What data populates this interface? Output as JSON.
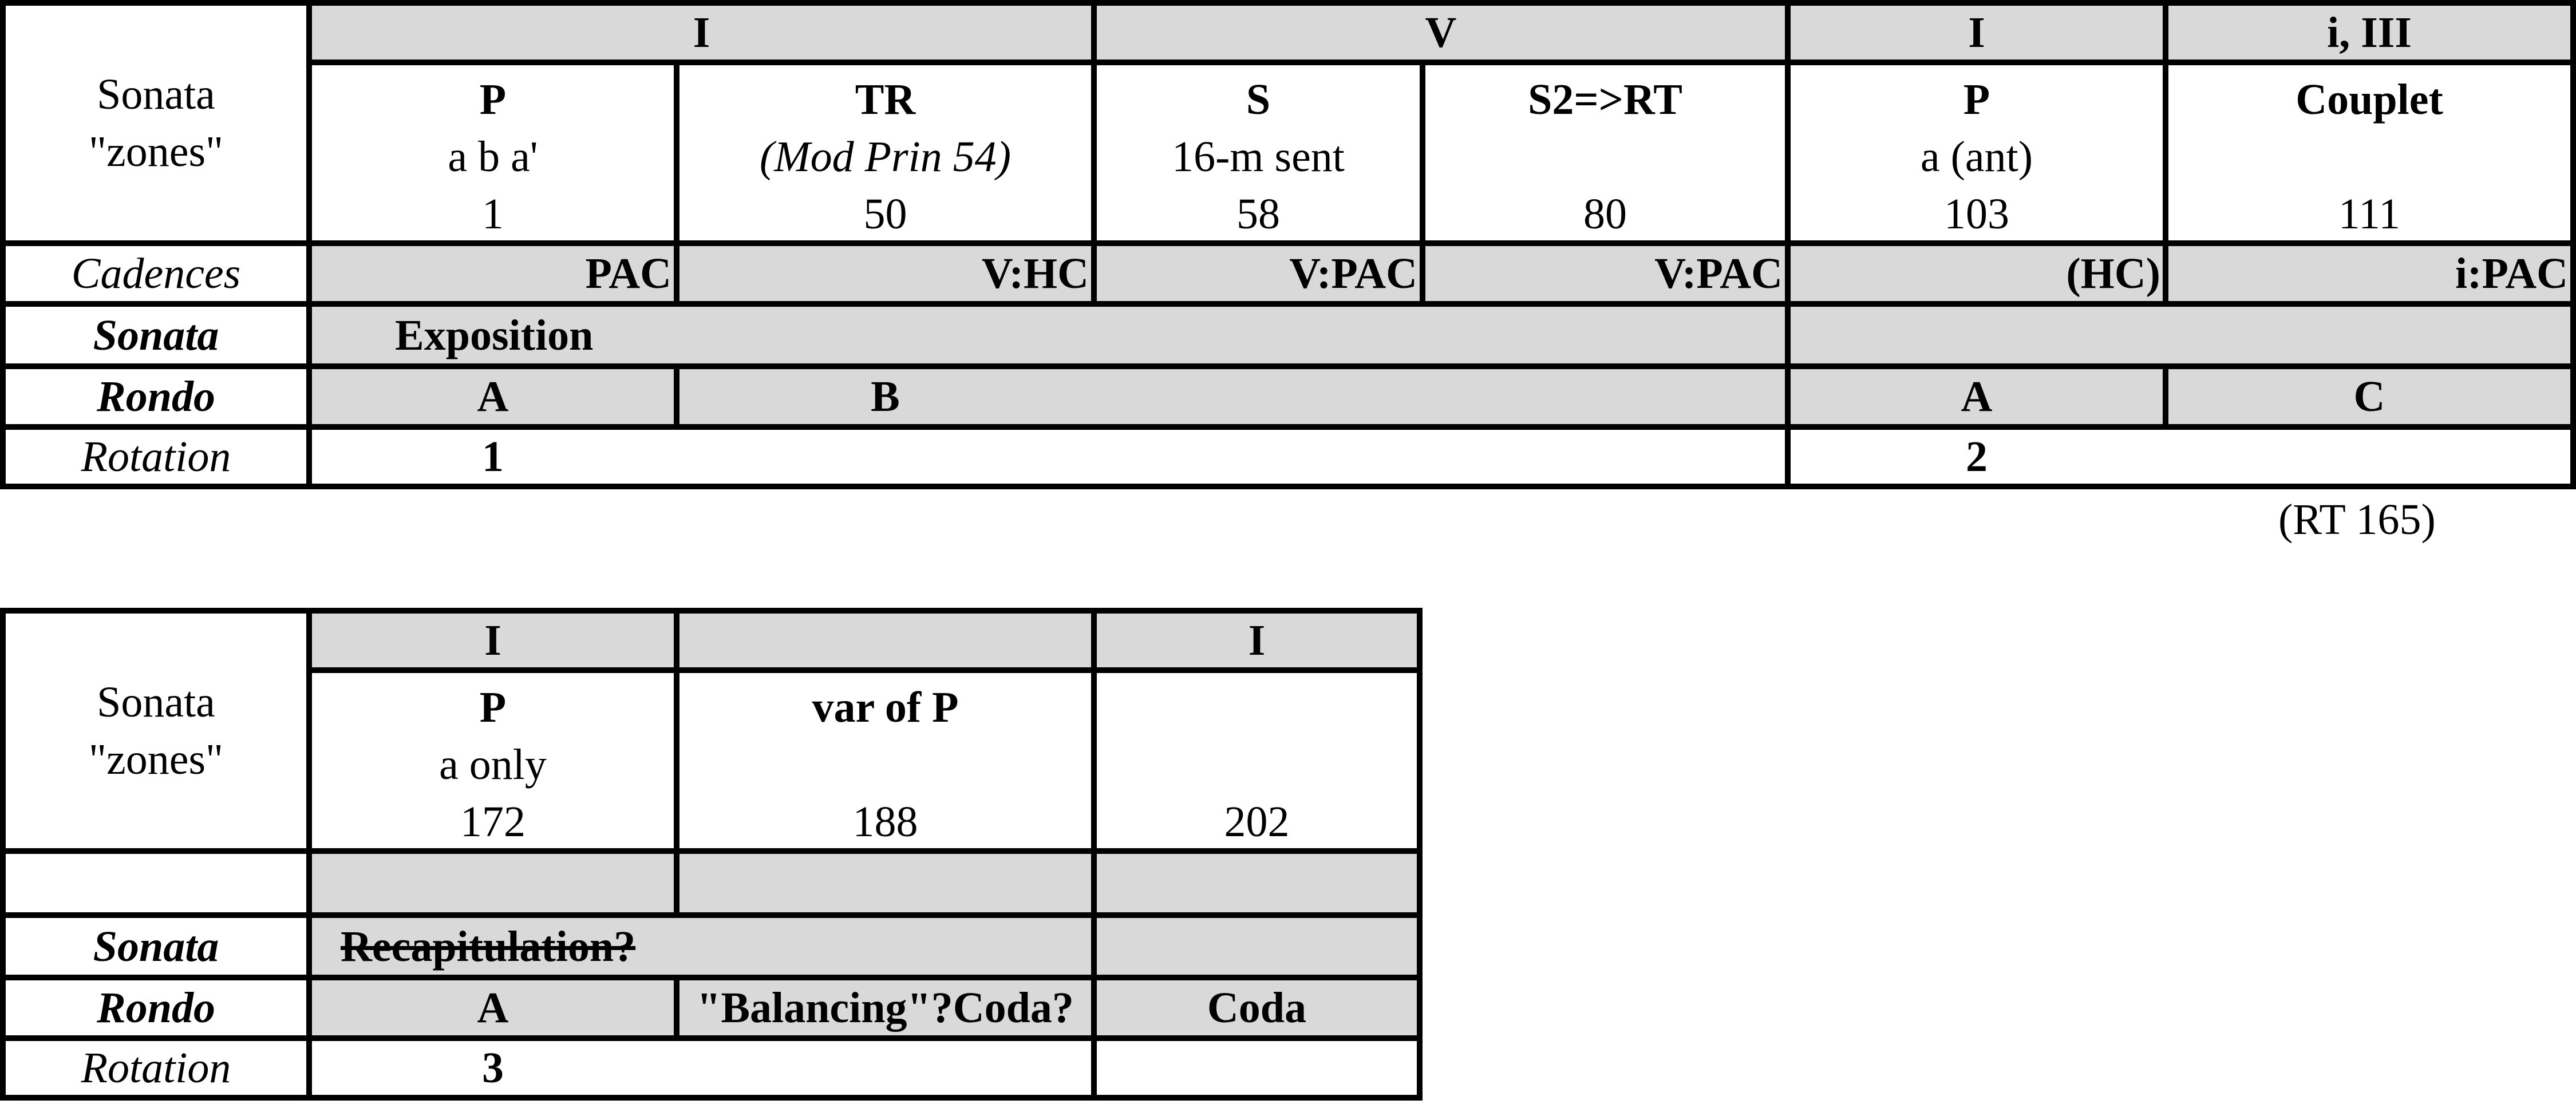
{
  "table1": {
    "row_label_zones": [
      "Sonata",
      "\"zones\""
    ],
    "row_labels": {
      "cadences": "Cadences",
      "sonata": "Sonata",
      "rondo": "Rondo",
      "rotation": "Rotation"
    },
    "keys": [
      "I",
      "V",
      "I",
      "i, III"
    ],
    "zones": [
      {
        "name": "P",
        "desc": "a b a'",
        "measure": "1"
      },
      {
        "name": "TR",
        "desc": "(Mod Prin 54)",
        "measure": "50"
      },
      {
        "name": "S",
        "desc": "16-m sent",
        "measure": "58"
      },
      {
        "name": "S2=>RT",
        "desc": "",
        "measure": "80"
      },
      {
        "name": "P",
        "desc": "a (ant)",
        "measure": "103"
      },
      {
        "name": "Couplet",
        "desc": "",
        "measure": "111"
      }
    ],
    "cadences": [
      "PAC",
      "V:HC",
      "V:PAC",
      "V:PAC",
      "(HC)",
      "i:PAC"
    ],
    "sonata": [
      "Exposition",
      ""
    ],
    "rondo": [
      "A",
      "B",
      "A",
      "C"
    ],
    "rotation": [
      "1",
      "2"
    ]
  },
  "note": "(RT 165)",
  "table2": {
    "row_label_zones": [
      "Sonata",
      "\"zones\""
    ],
    "row_labels": {
      "cadences": "",
      "sonata": "Sonata",
      "rondo": "Rondo",
      "rotation": "Rotation"
    },
    "keys": [
      "I",
      "",
      "I"
    ],
    "zones": [
      {
        "name": "P",
        "desc": "a only",
        "measure": "172"
      },
      {
        "name": "var of P",
        "desc": "",
        "measure": "188"
      },
      {
        "name": "",
        "desc": "",
        "measure": "202"
      }
    ],
    "cadences": [
      "",
      "",
      ""
    ],
    "sonata": [
      "Recapitulation?",
      ""
    ],
    "rondo": [
      "A",
      "\"Balancing\"?Coda?",
      "Coda"
    ],
    "rotation": [
      "3",
      ""
    ]
  },
  "colors": {
    "shaded": "#d9d9d9",
    "border": "#000000"
  }
}
